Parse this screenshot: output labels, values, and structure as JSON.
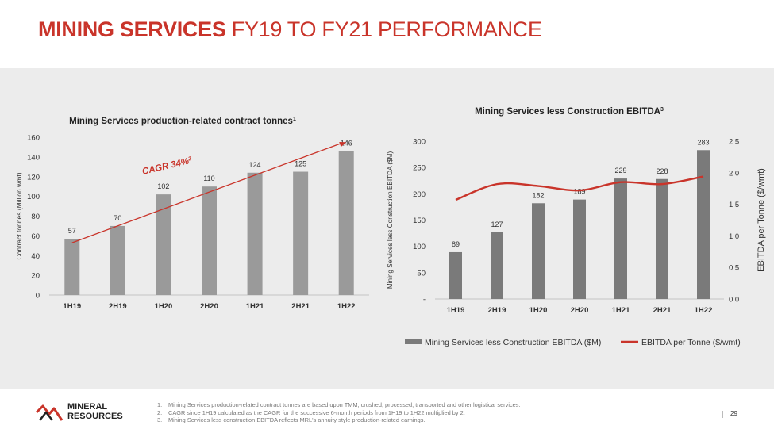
{
  "header": {
    "title_bold": "MINING SERVICES",
    "title_rest": " FY19 TO FY21 PERFORMANCE"
  },
  "colors": {
    "accent_red": "#c9342a",
    "bar_gray_left": "#9a9a9a",
    "bar_gray_right": "#7a7a7a",
    "panel_bg": "#ececec"
  },
  "chart_data": [
    {
      "type": "bar",
      "title": "Mining Services production-related contract tonnes",
      "title_superscript": "1",
      "ylabel": "Contract tonnes (Million wmt)",
      "xlabel": "",
      "categories": [
        "1H19",
        "2H19",
        "1H20",
        "2H20",
        "1H21",
        "2H21",
        "1H22"
      ],
      "values": [
        57,
        70,
        102,
        110,
        124,
        125,
        146
      ],
      "ylim": [
        0,
        160
      ],
      "yticks": [
        "0",
        "20",
        "40",
        "60",
        "80",
        "100",
        "120",
        "140",
        "160"
      ],
      "grid": false,
      "annotation": {
        "text": "CAGR 34%",
        "superscript": "2",
        "trend_start": 53,
        "trend_end": 155
      }
    },
    {
      "type": "bar+line",
      "title": "Mining Services less Construction EBITDA",
      "title_superscript": "3",
      "ylabel": "Mining Services less Construction EBITDA ($M)",
      "y2label": "EBITDA per Tonne ($/wmt)",
      "categories": [
        "1H19",
        "2H19",
        "1H20",
        "2H20",
        "1H21",
        "2H21",
        "1H22"
      ],
      "series": [
        {
          "name": "Mining Services less Construction EBITDA ($M)",
          "kind": "bar",
          "values": [
            89,
            127,
            182,
            189,
            229,
            228,
            283
          ]
        },
        {
          "name": "EBITDA per Tonne  ($/wmt)",
          "kind": "line",
          "axis": "right",
          "values": [
            1.57,
            1.82,
            1.79,
            1.72,
            1.85,
            1.82,
            1.94
          ]
        }
      ],
      "ylim": [
        0,
        300
      ],
      "yticks": [
        "-",
        "50",
        "100",
        "150",
        "200",
        "250",
        "300"
      ],
      "y2lim": [
        0,
        2.5
      ],
      "y2ticks": [
        "0.0",
        "0.5",
        "1.0",
        "1.5",
        "2.0",
        "2.5"
      ],
      "legend_position": "bottom",
      "grid": false
    }
  ],
  "footer": {
    "logo_line1": "MINERAL",
    "logo_line2": "RESOURCES",
    "notes": [
      {
        "num": "1.",
        "text": "Mining Services production-related contract tonnes are based upon TMM, crushed, processed, transported and other logistical services."
      },
      {
        "num": "2.",
        "text": "CAGR since 1H19 calculated as the CAGR for the successive 6-month periods from 1H19 to 1H22 multiplied by 2."
      },
      {
        "num": "3.",
        "text": "Mining Services less construction EBITDA reflects MRL's annuity style production-related earnings."
      }
    ],
    "page_number": "29"
  }
}
